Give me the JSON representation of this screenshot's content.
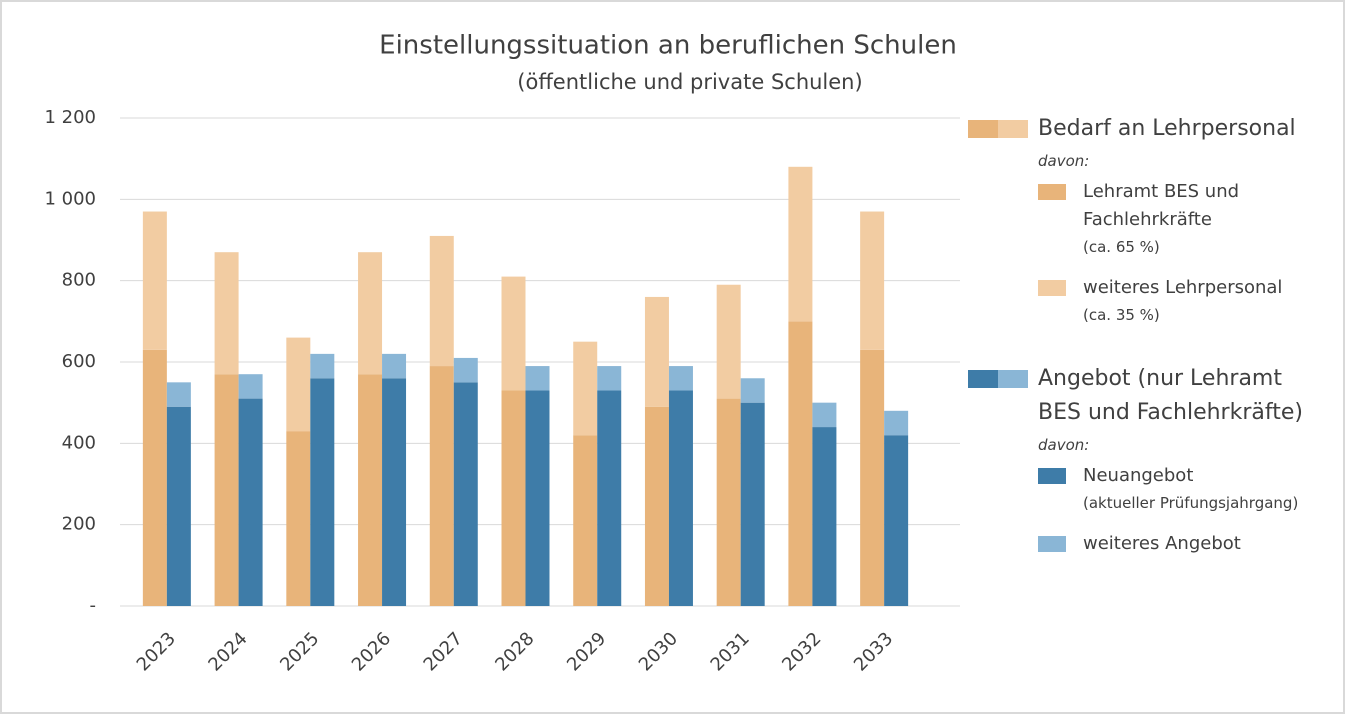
{
  "chart_data": {
    "type": "grouped_stacked_bar",
    "title": "Einstellungssituation an beruflichen Schulen",
    "subtitle": "(öffentliche und private Schulen)",
    "categories": [
      "2023",
      "2024",
      "2025",
      "2026",
      "2027",
      "2028",
      "2029",
      "2030",
      "2031",
      "2032",
      "2033"
    ],
    "ylim": [
      0,
      1200
    ],
    "yticks": [
      {
        "value": 0,
        "label": "-"
      },
      200,
      400,
      600,
      800,
      {
        "value": 1000,
        "label": "1 000"
      },
      {
        "value": 1200,
        "label": "1 200"
      }
    ],
    "grid": true,
    "groups": [
      {
        "name": "Bedarf an Lehrpersonal",
        "note": "davon:",
        "series": [
          {
            "name": "Lehramt BES und Fachlehrkräfte",
            "detail": "(ca. 65 %)",
            "color": "#e8b47a",
            "values": [
              630,
              570,
              430,
              570,
              590,
              530,
              420,
              490,
              510,
              700,
              630
            ]
          },
          {
            "name": "weiteres Lehrpersonal",
            "detail": "(ca. 35 %)",
            "color": "#f2cca2",
            "values": [
              340,
              300,
              230,
              300,
              320,
              280,
              230,
              270,
              280,
              380,
              340
            ]
          }
        ]
      },
      {
        "name": "Angebot (nur Lehramt BES und Fachlehrkräfte)",
        "note": "davon:",
        "series": [
          {
            "name": "Neuangebot",
            "detail": "(aktueller Prüfungsjahrgang)",
            "color": "#3e7ca8",
            "values": [
              490,
              510,
              560,
              560,
              550,
              530,
              530,
              530,
              500,
              440,
              420
            ]
          },
          {
            "name": "weiteres Angebot",
            "color": "#8ab6d6",
            "values": [
              60,
              60,
              60,
              60,
              60,
              60,
              60,
              60,
              60,
              60,
              60
            ]
          }
        ]
      }
    ]
  }
}
